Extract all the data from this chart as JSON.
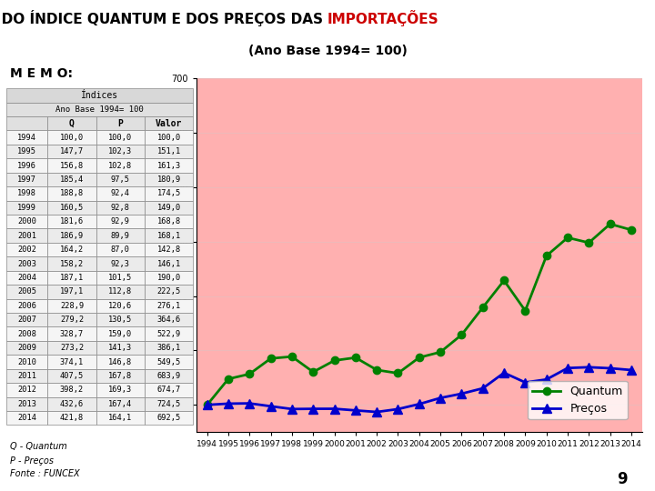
{
  "years": [
    1994,
    1995,
    1996,
    1997,
    1998,
    1999,
    2000,
    2001,
    2002,
    2003,
    2004,
    2005,
    2006,
    2007,
    2008,
    2009,
    2010,
    2011,
    2012,
    2013,
    2014
  ],
  "quantum": [
    100.0,
    147.7,
    156.8,
    185.4,
    188.8,
    160.5,
    181.6,
    186.9,
    164.2,
    158.2,
    187.1,
    197.1,
    228.9,
    279.2,
    328.7,
    273.2,
    374.1,
    407.5,
    398.2,
    432.6,
    421.8
  ],
  "precos": [
    100.0,
    102.3,
    102.8,
    97.5,
    92.4,
    92.8,
    92.9,
    89.9,
    87.0,
    92.3,
    101.5,
    112.8,
    120.6,
    130.5,
    159.0,
    141.3,
    146.8,
    167.8,
    169.3,
    167.4,
    164.1
  ],
  "valor": [
    100.0,
    151.1,
    161.3,
    180.9,
    174.5,
    149.0,
    168.8,
    168.1,
    142.8,
    146.1,
    190.0,
    222.5,
    276.1,
    364.6,
    522.9,
    386.1,
    549.5,
    683.9,
    674.7,
    724.5,
    692.5
  ],
  "title1": "EVOLUÇÃO DO ÍNDICE QUANTUM E DOS PREÇOS DAS ",
  "title1_red": "IMPORTAÇÕES",
  "title2": "(Ano Base 1994= 100)",
  "memo_label": "M E M O:",
  "table_header": "Índices",
  "table_subheader": "Ano Base 1994= 100",
  "col_headers": [
    "",
    "Q",
    "P",
    "Valor"
  ],
  "quantum_color": "#008000",
  "precos_color": "#0000CC",
  "importacoes_color": "#CC0000",
  "bg_color": "#FFB0B0",
  "legend_quantum": "Quantum",
  "legend_precos": "Preços",
  "footnote1": "Q - Quantum",
  "footnote2": "P - Preços",
  "fonte": "Fonte : FUNCEX",
  "page_num": "9",
  "ylim_min": 50,
  "ylim_max": 700
}
